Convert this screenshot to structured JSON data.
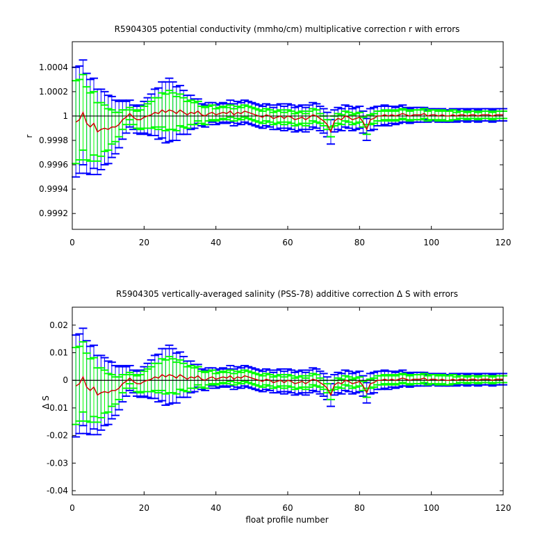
{
  "colors": {
    "outer_errorbar": "#0000ff",
    "inner_errorbar": "#00ff00",
    "correction_line": "#cc0000",
    "reference_line": "#000000"
  },
  "chart_data": [
    {
      "type": "line",
      "title": "R5904305 potential conductivity (mmho/cm) multiplicative correction r with errors",
      "xlabel": "",
      "ylabel": "r",
      "xlim": [
        0,
        120
      ],
      "ylim": [
        0.99907,
        1.00061
      ],
      "xticks": [
        0,
        20,
        40,
        60,
        80,
        100,
        120
      ],
      "xtick_labels": [
        "0",
        "20",
        "40",
        "60",
        "80",
        "100",
        "120"
      ],
      "yticks": [
        0.9992,
        0.9994,
        0.9996,
        0.9998,
        1,
        1.0002,
        1.0004
      ],
      "ytick_labels": [
        "0.9992",
        "0.9994",
        "0.9996",
        "0.9998",
        "1",
        "1.0002",
        "1.0004"
      ],
      "reference_value": 1,
      "center": 1,
      "scale": 1,
      "grid": false,
      "legend": "none"
    },
    {
      "type": "line",
      "title": "R5904305 vertically-averaged salinity (PSS-78) additive correction Δ S with errors",
      "xlabel": "float profile number",
      "ylabel": "Δ S",
      "xlim": [
        0,
        120
      ],
      "ylim": [
        -0.0415,
        0.0265
      ],
      "xticks": [
        0,
        20,
        40,
        60,
        80,
        100,
        120
      ],
      "xtick_labels": [
        "0",
        "20",
        "40",
        "60",
        "80",
        "100",
        "120"
      ],
      "yticks": [
        -0.04,
        -0.03,
        -0.02,
        -0.01,
        0,
        0.01,
        0.02
      ],
      "ytick_labels": [
        "-0.04",
        "-0.03",
        "-0.02",
        "-0.01",
        "0",
        "0.01",
        "0.02"
      ],
      "reference_value": 0,
      "center": 0,
      "scale": 41,
      "grid": false,
      "legend": "none"
    }
  ],
  "series_shared": {
    "profiles": [
      1,
      2,
      3,
      4,
      5,
      6,
      7,
      8,
      9,
      10,
      11,
      12,
      13,
      14,
      15,
      16,
      17,
      18,
      19,
      20,
      21,
      22,
      23,
      24,
      25,
      26,
      27,
      28,
      29,
      30,
      31,
      32,
      33,
      34,
      35,
      36,
      37,
      38,
      39,
      40,
      41,
      42,
      43,
      44,
      45,
      46,
      47,
      48,
      49,
      50,
      51,
      52,
      53,
      54,
      55,
      56,
      57,
      58,
      59,
      60,
      61,
      62,
      63,
      64,
      65,
      66,
      67,
      68,
      69,
      70,
      71,
      72,
      73,
      74,
      75,
      76,
      77,
      78,
      79,
      80,
      81,
      82,
      83,
      84,
      85,
      86,
      87,
      88,
      89,
      90,
      91,
      92,
      93,
      94,
      95,
      96,
      97,
      98,
      99,
      100,
      101,
      102,
      103,
      104,
      105,
      106,
      107,
      108,
      109,
      110,
      111,
      112,
      113,
      114,
      115,
      116,
      117,
      118,
      119,
      120
    ],
    "correction_offset": [
      -5e-05,
      -3e-05,
      3e-05,
      -6e-05,
      -9e-05,
      -6e-05,
      -0.00013,
      -0.00011,
      -0.0001,
      -0.00011,
      -9e-05,
      -9e-05,
      -7e-05,
      -3e-05,
      -1e-05,
      2e-05,
      -1e-05,
      -3e-05,
      -3e-05,
      -1e-05,
      0.0,
      1e-05,
      3e-05,
      2e-05,
      5e-05,
      3e-05,
      5e-05,
      4e-05,
      2e-05,
      5e-05,
      3e-05,
      1e-05,
      3e-05,
      2e-05,
      4e-05,
      1e-05,
      0.0,
      2e-05,
      3e-05,
      1e-05,
      2e-05,
      3e-05,
      2e-05,
      4e-05,
      1e-05,
      3e-05,
      2e-05,
      4e-05,
      3e-05,
      2e-05,
      1e-05,
      0.0,
      -1e-05,
      1e-05,
      0.0,
      -2e-05,
      -1e-05,
      0.0,
      -2e-05,
      0.0,
      -1e-05,
      -3e-05,
      -2e-05,
      -1e-05,
      -3e-05,
      -1e-05,
      1e-05,
      0.0,
      -2e-05,
      -4e-05,
      -7e-05,
      -0.00013,
      -4e-05,
      -2e-05,
      -3e-05,
      0.0,
      -1e-05,
      -3e-05,
      -2e-05,
      -1e-05,
      -5e-05,
      -0.00011,
      -3e-05,
      -2e-05,
      0.0,
      0.0,
      1e-05,
      0.0,
      1e-05,
      0.0,
      1e-05,
      2e-05,
      1e-05,
      0.0,
      1e-05,
      1e-05,
      1e-05,
      2e-05,
      0.0,
      1e-05,
      1e-05,
      0.0,
      1e-05,
      0.0,
      0.0,
      1e-05,
      0.0,
      1e-05,
      1e-05,
      0.0,
      1e-05,
      1e-05,
      0.0,
      1e-05,
      1e-05,
      1e-05,
      0.0,
      1e-05,
      1e-05,
      1e-05
    ],
    "inner_error": [
      0.00034,
      0.00033,
      0.00031,
      0.0003,
      0.00028,
      0.00026,
      0.00024,
      0.00022,
      0.00019,
      0.00017,
      0.00014,
      0.00012,
      0.0001,
      8e-05,
      6e-05,
      5e-05,
      6e-05,
      7e-05,
      8e-05,
      9e-05,
      0.0001,
      0.00011,
      0.00012,
      0.00013,
      0.00014,
      0.00015,
      0.00016,
      0.00015,
      0.00014,
      0.00013,
      0.00012,
      0.00011,
      0.0001,
      9e-05,
      8e-05,
      7e-05,
      7e-05,
      6e-05,
      6e-05,
      5e-05,
      5e-05,
      5e-05,
      5e-05,
      5e-05,
      5e-05,
      5e-05,
      5e-05,
      5e-05,
      5e-05,
      5e-05,
      5e-05,
      5e-05,
      5e-05,
      5e-05,
      5e-05,
      5e-05,
      5e-05,
      5e-05,
      5e-05,
      5e-05,
      5e-05,
      5e-05,
      5e-05,
      5e-05,
      5e-05,
      5e-05,
      5e-05,
      5e-05,
      4e-05,
      4e-05,
      4e-05,
      4e-05,
      4e-05,
      4e-05,
      4e-05,
      4e-05,
      4e-05,
      4e-05,
      4e-05,
      4e-05,
      4e-05,
      4e-05,
      4e-05,
      4e-05,
      4e-05,
      4e-05,
      4e-05,
      4e-05,
      4e-05,
      4e-05,
      4e-05,
      4e-05,
      4e-05,
      4e-05,
      4e-05,
      4e-05,
      4e-05,
      4e-05,
      4e-05,
      4e-05,
      4e-05,
      4e-05,
      4e-05,
      4e-05,
      4e-05,
      4e-05,
      3e-05,
      3e-05,
      3e-05,
      3e-05,
      3e-05,
      3e-05,
      3e-05,
      3e-05,
      3e-05,
      3e-05,
      3e-05,
      3e-05,
      3e-05,
      3e-05
    ],
    "outer_error": [
      0.00045,
      0.00044,
      0.00043,
      0.00041,
      0.00039,
      0.00037,
      0.00035,
      0.00033,
      0.0003,
      0.00028,
      0.00025,
      0.00022,
      0.00019,
      0.00016,
      0.00013,
      0.00011,
      0.0001,
      0.00011,
      0.00012,
      0.00013,
      0.00015,
      0.00017,
      0.00019,
      0.00021,
      0.00023,
      0.00025,
      0.00026,
      0.00024,
      0.00022,
      0.0002,
      0.00018,
      0.00016,
      0.00014,
      0.00012,
      0.0001,
      9e-05,
      9e-05,
      9e-05,
      8e-05,
      8e-05,
      8e-05,
      8e-05,
      8e-05,
      9e-05,
      9e-05,
      9e-05,
      9e-05,
      9e-05,
      9e-05,
      9e-05,
      9e-05,
      9e-05,
      9e-05,
      9e-05,
      9e-05,
      9e-05,
      0.0001,
      0.0001,
      0.0001,
      0.0001,
      0.0001,
      0.0001,
      0.0001,
      0.0001,
      0.0001,
      0.0001,
      0.0001,
      0.0001,
      0.0001,
      0.0001,
      0.0001,
      0.0001,
      9e-05,
      9e-05,
      9e-05,
      9e-05,
      9e-05,
      9e-05,
      9e-05,
      9e-05,
      9e-05,
      9e-05,
      9e-05,
      9e-05,
      8e-05,
      8e-05,
      8e-05,
      8e-05,
      7e-05,
      7e-05,
      7e-05,
      7e-05,
      6e-05,
      6e-05,
      6e-05,
      6e-05,
      6e-05,
      5e-05,
      5e-05,
      5e-05,
      5e-05,
      5e-05,
      5e-05,
      5e-05,
      5e-05,
      5e-05,
      5e-05,
      5e-05,
      5e-05,
      5e-05,
      5e-05,
      5e-05,
      5e-05,
      5e-05,
      5e-05,
      5e-05,
      5e-05,
      5e-05,
      5e-05,
      5e-05
    ]
  }
}
